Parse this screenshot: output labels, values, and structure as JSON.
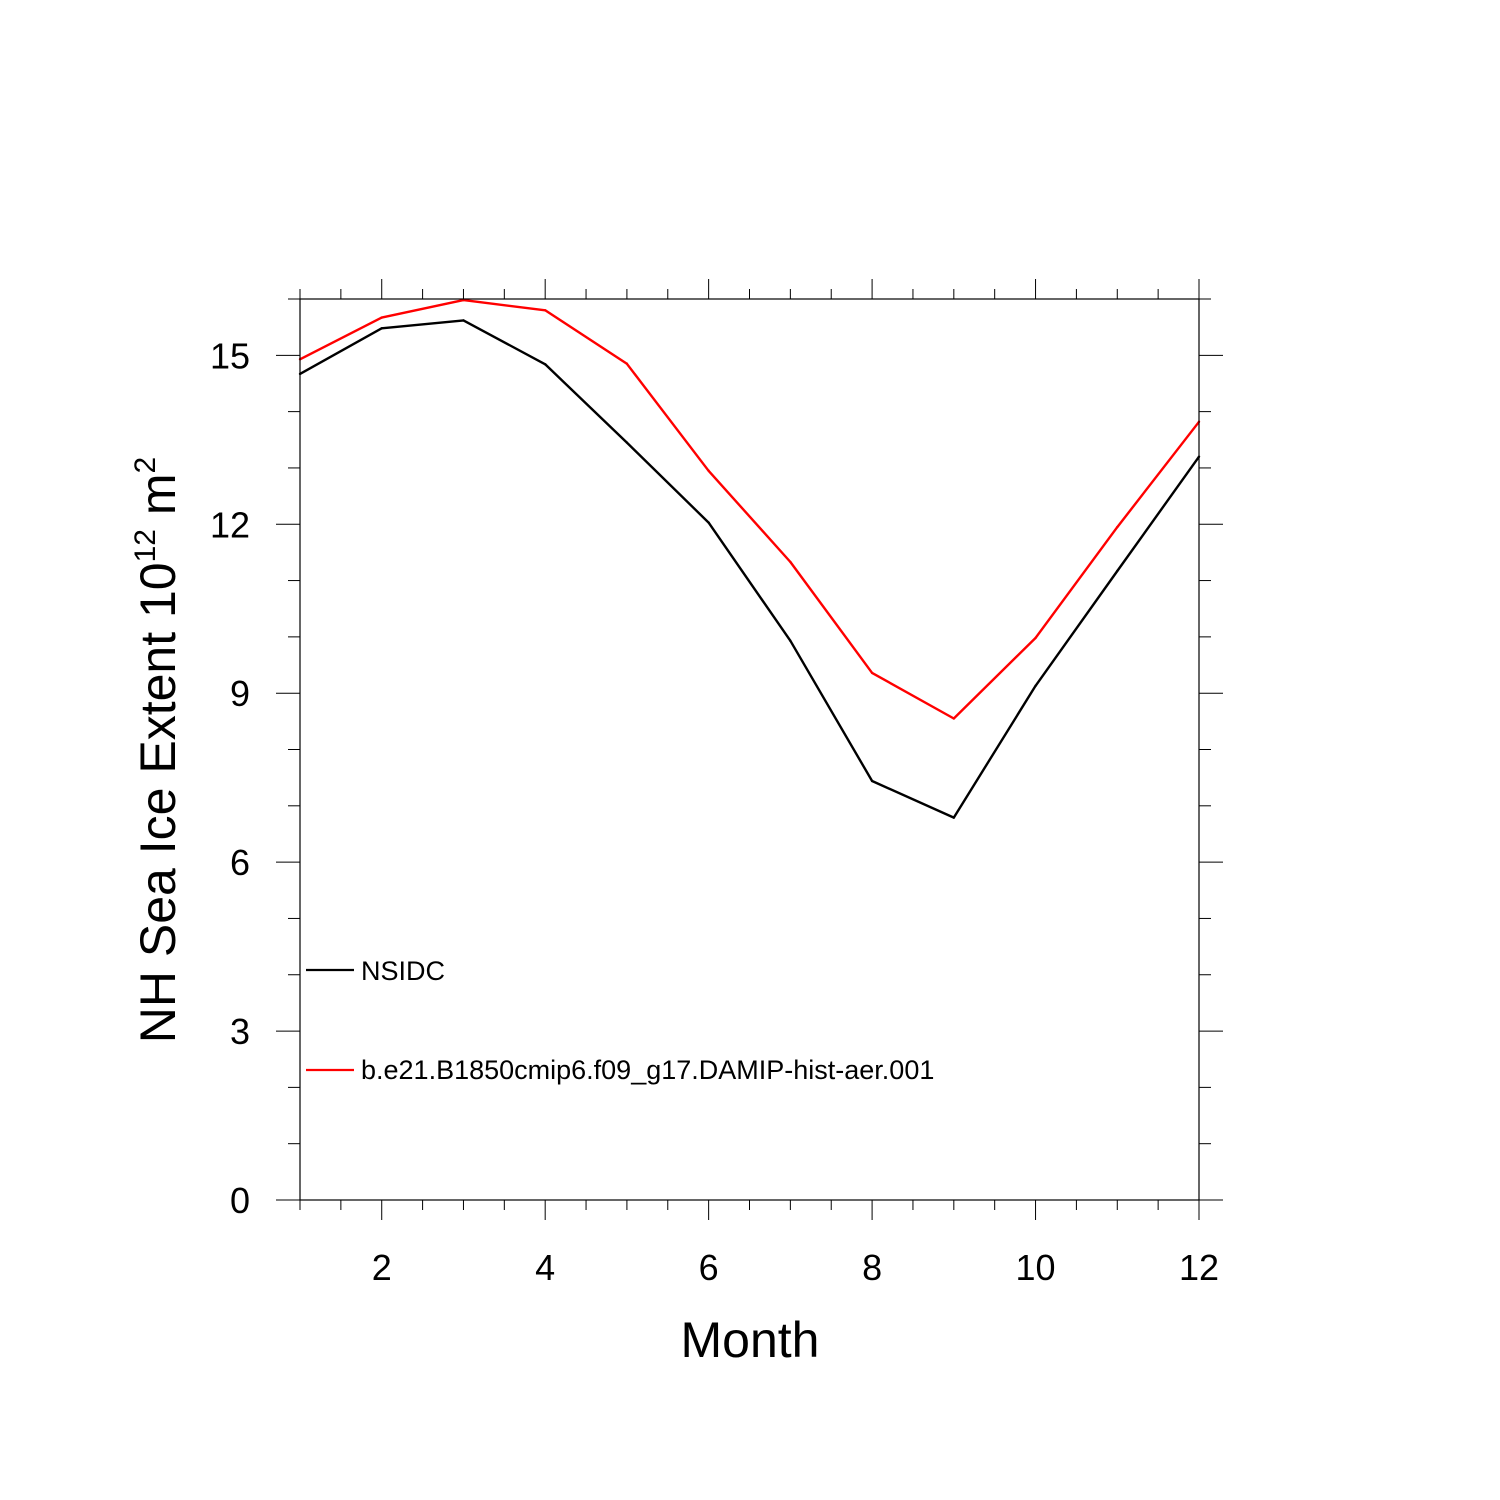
{
  "chart_data": {
    "type": "line",
    "title": "",
    "xlabel": "Month",
    "ylabel": {
      "base": "NH Sea Ice Extent 10",
      "exponent": "12",
      "unit": " m",
      "unit_exponent": "2"
    },
    "xlim": [
      1,
      12
    ],
    "ylim": [
      0,
      16
    ],
    "x_ticks": [
      2,
      4,
      6,
      8,
      10,
      12
    ],
    "y_ticks": [
      0,
      3,
      6,
      9,
      12,
      15
    ],
    "grid": false,
    "legend_position": "lower-left",
    "x": [
      1,
      2,
      3,
      4,
      5,
      6,
      7,
      8,
      9,
      10,
      11,
      12
    ],
    "series": [
      {
        "name": "NSIDC",
        "color": "#000000",
        "values": [
          14.67,
          15.48,
          15.62,
          14.84,
          13.45,
          12.03,
          9.93,
          7.44,
          6.79,
          9.13,
          11.17,
          13.2
        ]
      },
      {
        "name": "b.e21.B1850cmip6.f09_g17.DAMIP-hist-aer.001",
        "color": "#ff0000",
        "values": [
          14.93,
          15.67,
          15.98,
          15.8,
          14.85,
          12.95,
          11.33,
          9.36,
          8.55,
          9.98,
          11.95,
          13.82
        ]
      }
    ]
  }
}
